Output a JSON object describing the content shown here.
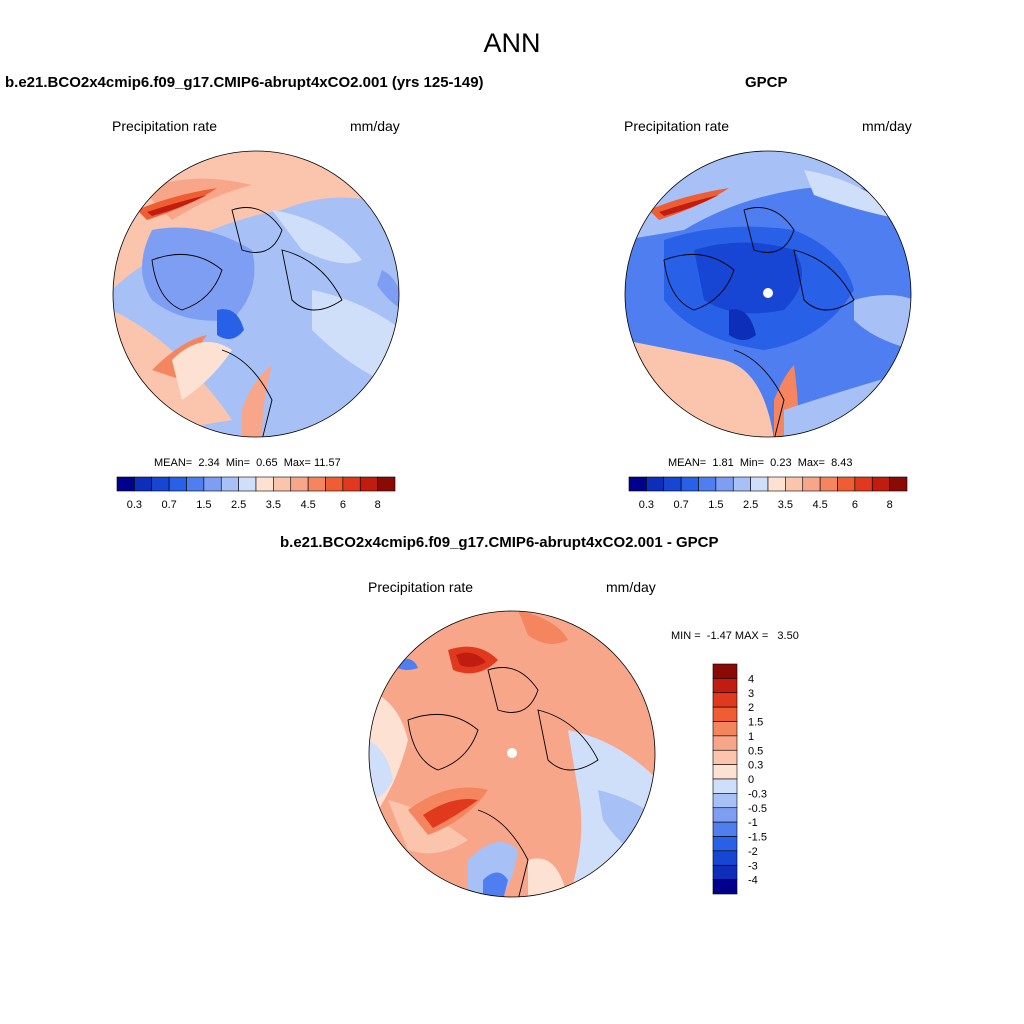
{
  "header": {
    "season": "ANN"
  },
  "panels": {
    "model": {
      "title": "b.e21.BCO2x4cmip6.f09_g17.CMIP6-abrupt4xCO2.001 (yrs 125-149)",
      "variable": "Precipitation rate",
      "units": "mm/day",
      "mean_label": "MEAN=",
      "mean": "2.34",
      "min_label": "Min=",
      "min": "0.65",
      "max_label": "Max=",
      "max": "11.57"
    },
    "obs": {
      "title": "GPCP",
      "variable": "Precipitation rate",
      "units": "mm/day",
      "mean_label": "MEAN=",
      "mean": "1.81",
      "min_label": "Min=",
      "min": "0.23",
      "max_label": "Max=",
      "max": "8.43"
    },
    "diff": {
      "title": "b.e21.BCO2x4cmip6.f09_g17.CMIP6-abrupt4xCO2.001 - GPCP",
      "variable": "Precipitation rate",
      "units": "mm/day",
      "min_label": "MIN =",
      "min": "-1.47",
      "max_label": "MAX =",
      "max": "3.50"
    }
  },
  "colorbar_abs": {
    "colors": [
      "#00008c",
      "#0c2eb9",
      "#1746d4",
      "#2860e8",
      "#4f7ef0",
      "#7e9ef3",
      "#a7c0f6",
      "#cfdff9",
      "#fde2d3",
      "#fbc4ad",
      "#f8a68a",
      "#f4855f",
      "#ef5e33",
      "#e0391e",
      "#c01d10",
      "#8b0a06"
    ],
    "tick_labels": [
      "0.3",
      "0.7",
      "1.5",
      "2.5",
      "3.5",
      "4.5",
      "6",
      "8"
    ],
    "tick_boundary_index": [
      1,
      3,
      5,
      7,
      9,
      11,
      13,
      15
    ]
  },
  "colorbar_diff": {
    "colors": [
      "#8b0a06",
      "#c01d10",
      "#e0391e",
      "#ef5e33",
      "#f4855f",
      "#f8a68a",
      "#fbc4ad",
      "#fde2d3",
      "#cfdff9",
      "#a7c0f6",
      "#7e9ef3",
      "#4f7ef0",
      "#2860e8",
      "#1746d4",
      "#0c2eb9",
      "#00008c"
    ],
    "tick_labels": [
      "4",
      "3",
      "2",
      "1.5",
      "1",
      "0.5",
      "0.3",
      "0",
      "-0.3",
      "-0.5",
      "-1",
      "-1.5",
      "-2",
      "-3",
      "-4"
    ]
  }
}
